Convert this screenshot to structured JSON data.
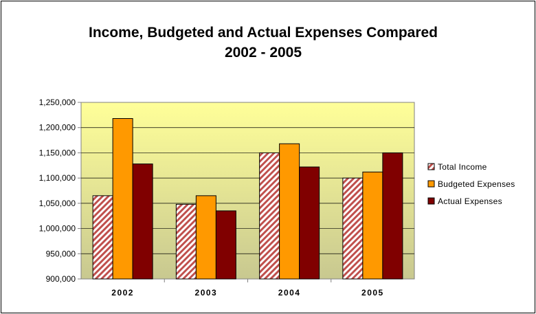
{
  "chart_data": {
    "type": "bar",
    "title_lines": [
      "Income, Budgeted and Actual Expenses Compared",
      "2002 - 2005"
    ],
    "categories": [
      "2002",
      "2003",
      "2004",
      "2005"
    ],
    "series": [
      {
        "name": "Total Income",
        "values": [
          1065000,
          1048000,
          1150000,
          1100000
        ],
        "color": "#c0504d",
        "pattern": "hatch"
      },
      {
        "name": "Budgeted Expenses",
        "values": [
          1218000,
          1065000,
          1168000,
          1112000
        ],
        "color": "#ff9900"
      },
      {
        "name": "Actual Expenses",
        "values": [
          1128000,
          1035000,
          1122000,
          1150000
        ],
        "color": "#800000"
      }
    ],
    "xlabel": "",
    "ylabel": "",
    "ylim": [
      900000,
      1250000
    ],
    "y_ticks": [
      "900,000",
      "950,000",
      "1,000,000",
      "1,050,000",
      "1,100,000",
      "1,150,000",
      "1,200,000",
      "1,250,000"
    ],
    "grid": true,
    "legend_position": "right",
    "plot_gradient": [
      "#ffff99",
      "#c8c890"
    ]
  }
}
